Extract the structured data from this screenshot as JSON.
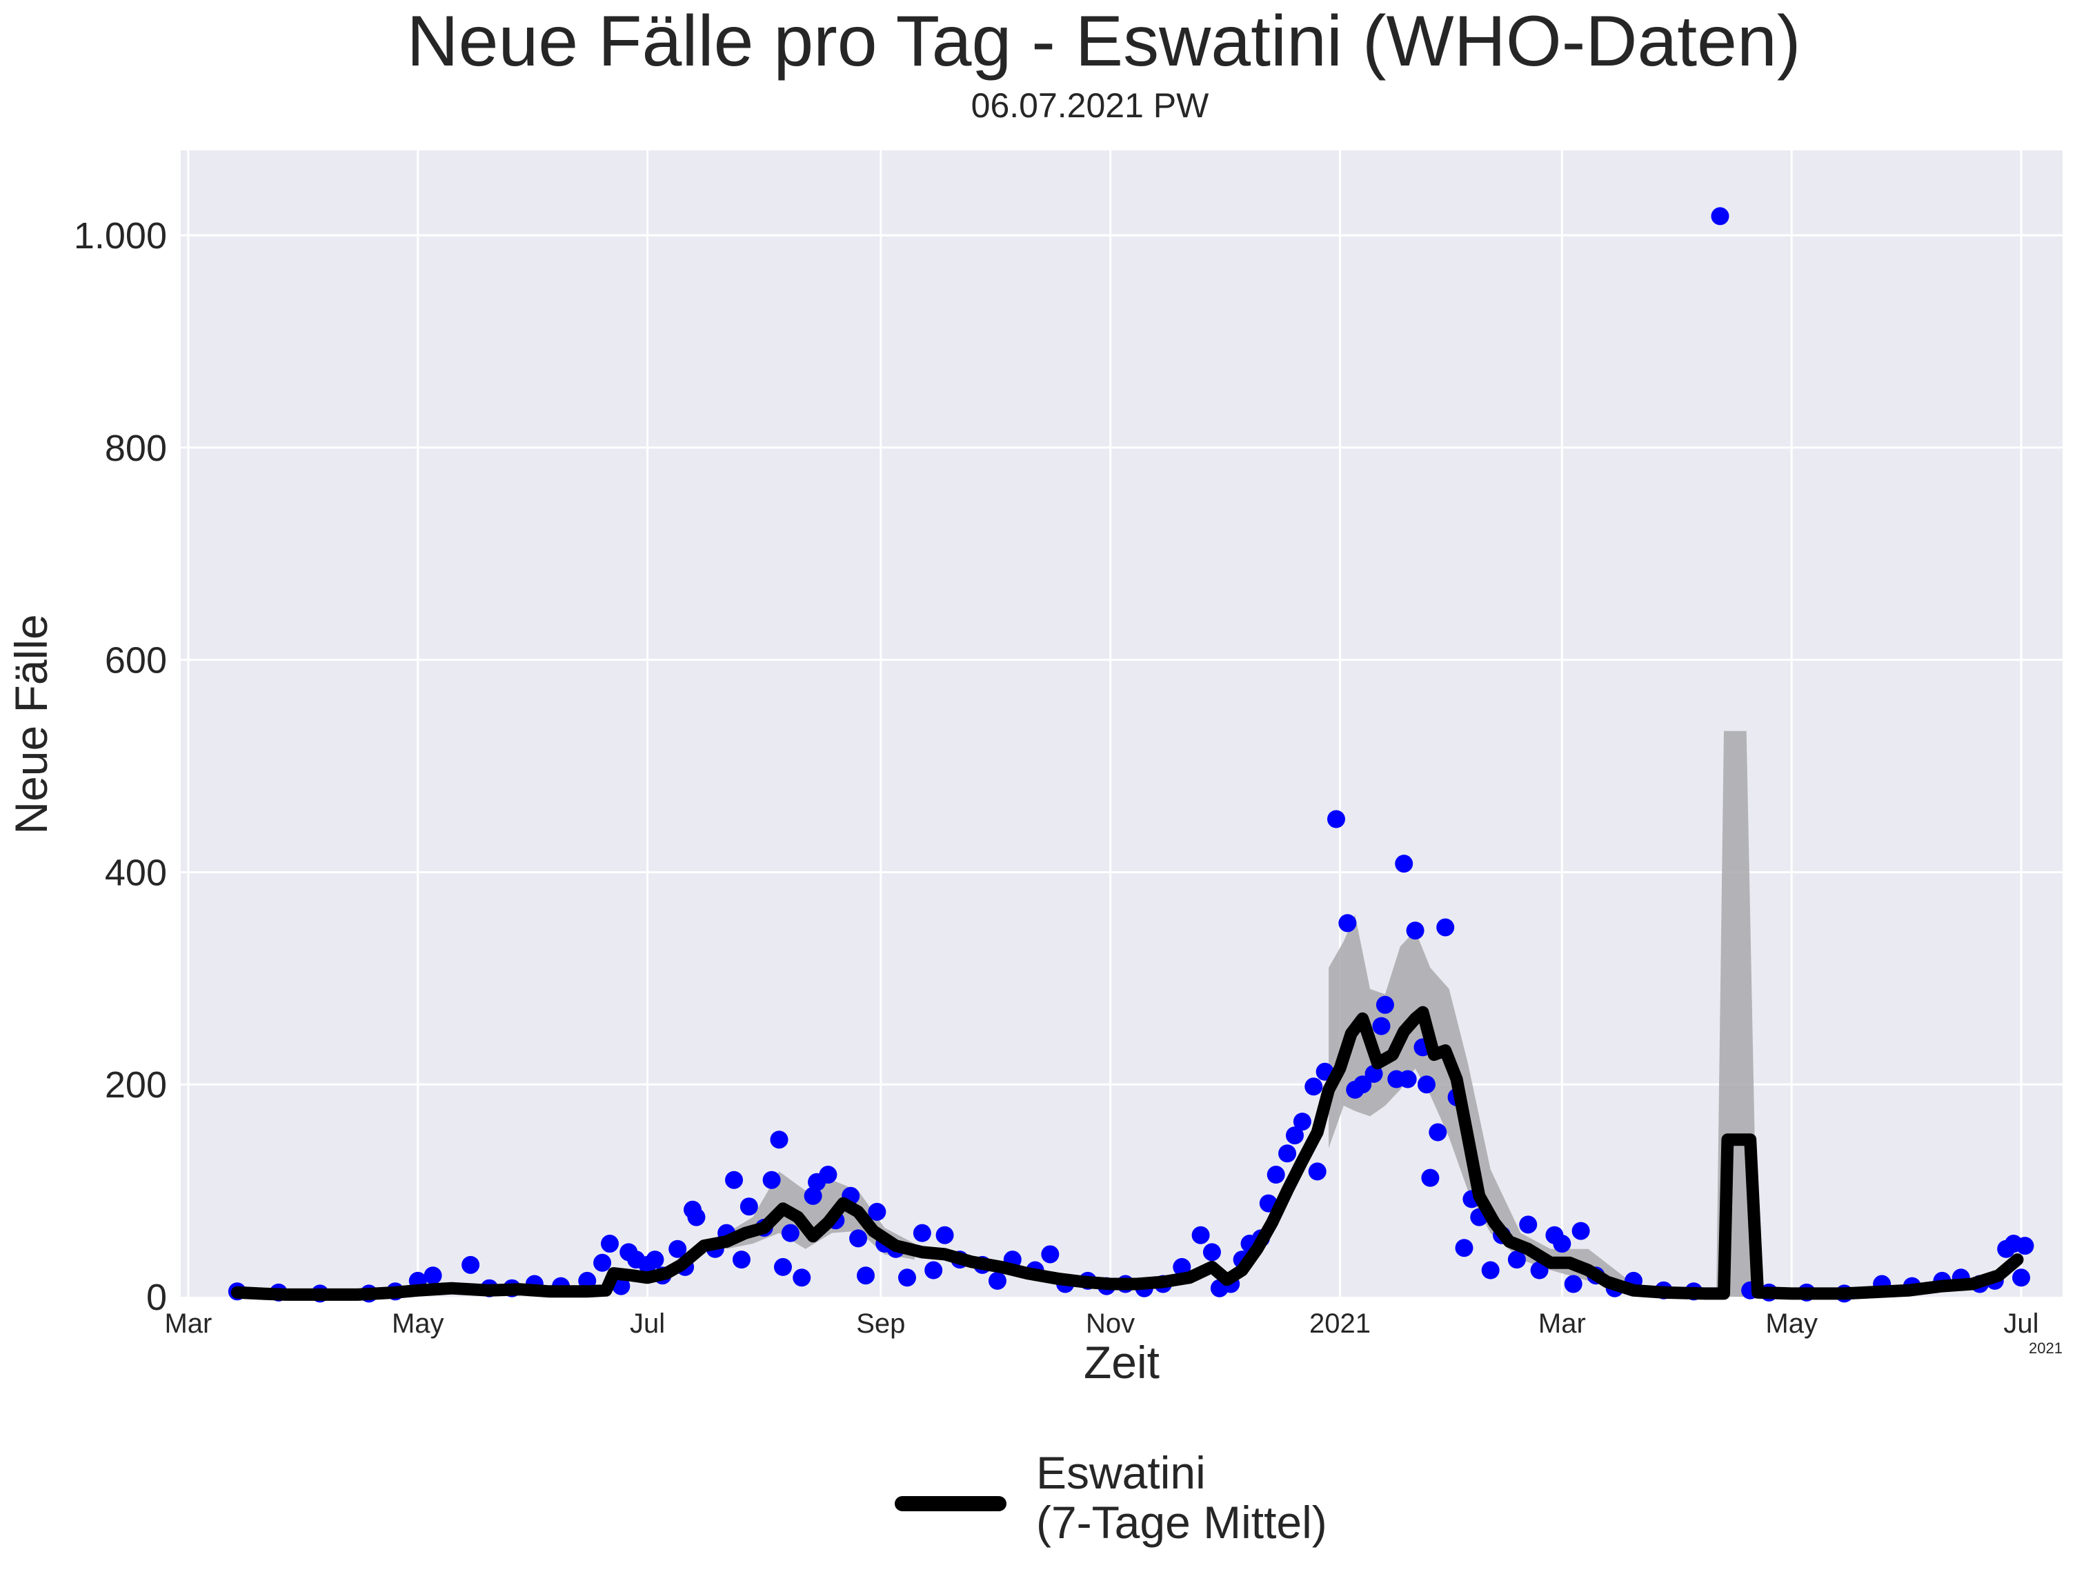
{
  "chart_data": {
    "type": "line",
    "title": "Neue Fälle pro Tag - Eswatini (WHO-Daten)",
    "subtitle": "06.07.2021 PW",
    "xlabel": "Zeit",
    "ylabel": "Neue Fälle",
    "x_range": [
      "2020-02-28",
      "2021-07-12"
    ],
    "ylim": [
      0,
      1080
    ],
    "y_ticks": [
      0,
      200,
      400,
      600,
      800,
      1000
    ],
    "y_tick_labels": [
      "0",
      "200",
      "400",
      "600",
      "800",
      "1.000"
    ],
    "x_ticks": [
      "2020-03-01",
      "2020-05-01",
      "2020-07-01",
      "2020-09-01",
      "2020-11-01",
      "2021-01-01",
      "2021-03-01",
      "2021-05-01",
      "2021-07-01"
    ],
    "x_tick_labels": [
      "Mar",
      "May",
      "Jul",
      "Sep",
      "Nov",
      "2021",
      "Mar",
      "May",
      "Jul"
    ],
    "x_offset_label": "2021",
    "grid": true,
    "background": "#eaeaf2",
    "legend": {
      "placement": "bottom-center",
      "label": "Eswatini\n(7-Tage Mittel)"
    },
    "colors": {
      "points": "#0000ff",
      "line": "#000000",
      "band": "#a9a9ad",
      "grid": "#ffffff"
    },
    "series": [
      {
        "name": "Eswatini\n(7-Tage Mittel)",
        "kind": "line",
        "points": [
          [
            "2020-03-14",
            4
          ],
          [
            "2020-03-20",
            3
          ],
          [
            "2020-03-27",
            2
          ],
          [
            "2020-04-05",
            2
          ],
          [
            "2020-04-15",
            2
          ],
          [
            "2020-04-25",
            4
          ],
          [
            "2020-05-01",
            6
          ],
          [
            "2020-05-10",
            8
          ],
          [
            "2020-05-20",
            6
          ],
          [
            "2020-05-28",
            7
          ],
          [
            "2020-06-05",
            5
          ],
          [
            "2020-06-15",
            5
          ],
          [
            "2020-06-20",
            6
          ],
          [
            "2020-06-22",
            22
          ],
          [
            "2020-06-27",
            20
          ],
          [
            "2020-07-01",
            18
          ],
          [
            "2020-07-06",
            22
          ],
          [
            "2020-07-10",
            30
          ],
          [
            "2020-07-16",
            48
          ],
          [
            "2020-07-22",
            52
          ],
          [
            "2020-07-27",
            60
          ],
          [
            "2020-08-01",
            65
          ],
          [
            "2020-08-06",
            83
          ],
          [
            "2020-08-10",
            75
          ],
          [
            "2020-08-14",
            57
          ],
          [
            "2020-08-18",
            70
          ],
          [
            "2020-08-22",
            88
          ],
          [
            "2020-08-26",
            80
          ],
          [
            "2020-08-30",
            62
          ],
          [
            "2020-09-05",
            48
          ],
          [
            "2020-09-12",
            42
          ],
          [
            "2020-09-18",
            40
          ],
          [
            "2020-09-25",
            33
          ],
          [
            "2020-10-03",
            28
          ],
          [
            "2020-10-10",
            22
          ],
          [
            "2020-10-18",
            17
          ],
          [
            "2020-10-25",
            14
          ],
          [
            "2020-11-01",
            12
          ],
          [
            "2020-11-08",
            12
          ],
          [
            "2020-11-15",
            14
          ],
          [
            "2020-11-22",
            18
          ],
          [
            "2020-11-28",
            28
          ],
          [
            "2020-12-02",
            16
          ],
          [
            "2020-12-06",
            25
          ],
          [
            "2020-12-10",
            45
          ],
          [
            "2020-12-14",
            70
          ],
          [
            "2020-12-18",
            100
          ],
          [
            "2020-12-22",
            128
          ],
          [
            "2020-12-26",
            155
          ],
          [
            "2020-12-29",
            195
          ],
          [
            "2021-01-01",
            215
          ],
          [
            "2021-01-04",
            248
          ],
          [
            "2021-01-07",
            262
          ],
          [
            "2021-01-11",
            220
          ],
          [
            "2021-01-15",
            228
          ],
          [
            "2021-01-18",
            250
          ],
          [
            "2021-01-21",
            262
          ],
          [
            "2021-01-23",
            268
          ],
          [
            "2021-01-26",
            228
          ],
          [
            "2021-01-29",
            232
          ],
          [
            "2021-02-01",
            205
          ],
          [
            "2021-02-04",
            150
          ],
          [
            "2021-02-07",
            95
          ],
          [
            "2021-02-11",
            70
          ],
          [
            "2021-02-15",
            52
          ],
          [
            "2021-02-20",
            45
          ],
          [
            "2021-02-26",
            32
          ],
          [
            "2021-03-03",
            32
          ],
          [
            "2021-03-08",
            25
          ],
          [
            "2021-03-13",
            14
          ],
          [
            "2021-03-20",
            6
          ],
          [
            "2021-03-28",
            4
          ],
          [
            "2021-04-08",
            3
          ],
          [
            "2021-04-13",
            3
          ],
          [
            "2021-04-14",
            148
          ],
          [
            "2021-04-20",
            148
          ],
          [
            "2021-04-22",
            4
          ],
          [
            "2021-05-01",
            3
          ],
          [
            "2021-05-15",
            3
          ],
          [
            "2021-06-01",
            6
          ],
          [
            "2021-06-10",
            10
          ],
          [
            "2021-06-18",
            12
          ],
          [
            "2021-06-25",
            20
          ],
          [
            "2021-06-30",
            35
          ]
        ]
      },
      {
        "name": "",
        "kind": "band",
        "points": [
          [
            "2020-07-22",
            45,
            60
          ],
          [
            "2020-07-29",
            50,
            75
          ],
          [
            "2020-08-05",
            60,
            118
          ],
          [
            "2020-08-12",
            45,
            100
          ],
          [
            "2020-08-19",
            60,
            110
          ],
          [
            "2020-08-26",
            62,
            100
          ],
          [
            "2020-09-02",
            40,
            65
          ],
          [
            "2020-09-10",
            35,
            50
          ],
          [
            "2020-12-29",
            140,
            310
          ],
          [
            "2021-01-02",
            180,
            335
          ],
          [
            "2021-01-05",
            175,
            360
          ],
          [
            "2021-01-09",
            170,
            290
          ],
          [
            "2021-01-13",
            180,
            285
          ],
          [
            "2021-01-17",
            195,
            330
          ],
          [
            "2021-01-21",
            215,
            345
          ],
          [
            "2021-01-25",
            190,
            310
          ],
          [
            "2021-01-30",
            150,
            290
          ],
          [
            "2021-02-04",
            100,
            220
          ],
          [
            "2021-02-10",
            60,
            120
          ],
          [
            "2021-02-18",
            35,
            60
          ],
          [
            "2021-02-26",
            25,
            45
          ],
          [
            "2021-03-08",
            15,
            45
          ],
          [
            "2021-03-20",
            3,
            12
          ],
          [
            "2021-04-11",
            0,
            4
          ],
          [
            "2021-04-13",
            0,
            533
          ],
          [
            "2021-04-19",
            0,
            533
          ],
          [
            "2021-04-22",
            0,
            10
          ]
        ]
      },
      {
        "name": "",
        "kind": "scatter",
        "points": [
          [
            "2020-03-14",
            5
          ],
          [
            "2020-03-25",
            4
          ],
          [
            "2020-04-05",
            3
          ],
          [
            "2020-04-18",
            3
          ],
          [
            "2020-04-25",
            5
          ],
          [
            "2020-05-01",
            15
          ],
          [
            "2020-05-05",
            20
          ],
          [
            "2020-05-15",
            30
          ],
          [
            "2020-05-20",
            8
          ],
          [
            "2020-05-26",
            8
          ],
          [
            "2020-06-01",
            12
          ],
          [
            "2020-06-08",
            10
          ],
          [
            "2020-06-15",
            15
          ],
          [
            "2020-06-19",
            32
          ],
          [
            "2020-06-21",
            50
          ],
          [
            "2020-06-24",
            10
          ],
          [
            "2020-06-26",
            42
          ],
          [
            "2020-06-28",
            35
          ],
          [
            "2020-07-01",
            30
          ],
          [
            "2020-07-03",
            35
          ],
          [
            "2020-07-05",
            20
          ],
          [
            "2020-07-09",
            45
          ],
          [
            "2020-07-11",
            28
          ],
          [
            "2020-07-13",
            82
          ],
          [
            "2020-07-14",
            75
          ],
          [
            "2020-07-19",
            45
          ],
          [
            "2020-07-22",
            60
          ],
          [
            "2020-07-24",
            110
          ],
          [
            "2020-07-26",
            35
          ],
          [
            "2020-07-28",
            85
          ],
          [
            "2020-08-01",
            65
          ],
          [
            "2020-08-03",
            110
          ],
          [
            "2020-08-05",
            148
          ],
          [
            "2020-08-06",
            28
          ],
          [
            "2020-08-08",
            60
          ],
          [
            "2020-08-11",
            18
          ],
          [
            "2020-08-14",
            95
          ],
          [
            "2020-08-15",
            108
          ],
          [
            "2020-08-18",
            115
          ],
          [
            "2020-08-20",
            72
          ],
          [
            "2020-08-24",
            95
          ],
          [
            "2020-08-26",
            55
          ],
          [
            "2020-08-28",
            20
          ],
          [
            "2020-08-31",
            80
          ],
          [
            "2020-09-02",
            50
          ],
          [
            "2020-09-05",
            45
          ],
          [
            "2020-09-08",
            18
          ],
          [
            "2020-09-12",
            60
          ],
          [
            "2020-09-15",
            25
          ],
          [
            "2020-09-18",
            58
          ],
          [
            "2020-09-22",
            35
          ],
          [
            "2020-09-28",
            30
          ],
          [
            "2020-10-02",
            15
          ],
          [
            "2020-10-06",
            35
          ],
          [
            "2020-10-12",
            25
          ],
          [
            "2020-10-16",
            40
          ],
          [
            "2020-10-20",
            12
          ],
          [
            "2020-10-26",
            15
          ],
          [
            "2020-10-31",
            10
          ],
          [
            "2020-11-05",
            12
          ],
          [
            "2020-11-10",
            8
          ],
          [
            "2020-11-15",
            12
          ],
          [
            "2020-11-20",
            28
          ],
          [
            "2020-11-25",
            58
          ],
          [
            "2020-11-28",
            42
          ],
          [
            "2020-11-30",
            8
          ],
          [
            "2020-12-03",
            12
          ],
          [
            "2020-12-06",
            35
          ],
          [
            "2020-12-08",
            50
          ],
          [
            "2020-12-11",
            55
          ],
          [
            "2020-12-13",
            88
          ],
          [
            "2020-12-15",
            115
          ],
          [
            "2020-12-18",
            135
          ],
          [
            "2020-12-20",
            152
          ],
          [
            "2020-12-22",
            165
          ],
          [
            "2020-12-25",
            198
          ],
          [
            "2020-12-26",
            118
          ],
          [
            "2020-12-28",
            212
          ],
          [
            "2020-12-31",
            450
          ],
          [
            "2021-01-03",
            352
          ],
          [
            "2021-01-05",
            195
          ],
          [
            "2021-01-07",
            200
          ],
          [
            "2021-01-10",
            210
          ],
          [
            "2021-01-12",
            255
          ],
          [
            "2021-01-13",
            275
          ],
          [
            "2021-01-16",
            205
          ],
          [
            "2021-01-18",
            408
          ],
          [
            "2021-01-19",
            205
          ],
          [
            "2021-01-21",
            345
          ],
          [
            "2021-01-23",
            235
          ],
          [
            "2021-01-24",
            200
          ],
          [
            "2021-01-25",
            112
          ],
          [
            "2021-01-27",
            155
          ],
          [
            "2021-01-29",
            348
          ],
          [
            "2021-02-01",
            188
          ],
          [
            "2021-02-03",
            46
          ],
          [
            "2021-02-05",
            92
          ],
          [
            "2021-02-07",
            75
          ],
          [
            "2021-02-10",
            25
          ],
          [
            "2021-02-13",
            58
          ],
          [
            "2021-02-17",
            35
          ],
          [
            "2021-02-20",
            68
          ],
          [
            "2021-02-23",
            25
          ],
          [
            "2021-02-27",
            58
          ],
          [
            "2021-03-01",
            50
          ],
          [
            "2021-03-04",
            12
          ],
          [
            "2021-03-06",
            62
          ],
          [
            "2021-03-10",
            20
          ],
          [
            "2021-03-15",
            8
          ],
          [
            "2021-03-20",
            15
          ],
          [
            "2021-03-28",
            6
          ],
          [
            "2021-04-05",
            5
          ],
          [
            "2021-04-12",
            1018
          ],
          [
            "2021-04-20",
            6
          ],
          [
            "2021-04-25",
            4
          ],
          [
            "2021-05-05",
            4
          ],
          [
            "2021-05-15",
            3
          ],
          [
            "2021-05-25",
            12
          ],
          [
            "2021-06-02",
            10
          ],
          [
            "2021-06-10",
            15
          ],
          [
            "2021-06-15",
            18
          ],
          [
            "2021-06-20",
            12
          ],
          [
            "2021-06-24",
            15
          ],
          [
            "2021-06-27",
            45
          ],
          [
            "2021-06-29",
            50
          ],
          [
            "2021-07-01",
            18
          ],
          [
            "2021-07-02",
            48
          ]
        ]
      }
    ]
  }
}
